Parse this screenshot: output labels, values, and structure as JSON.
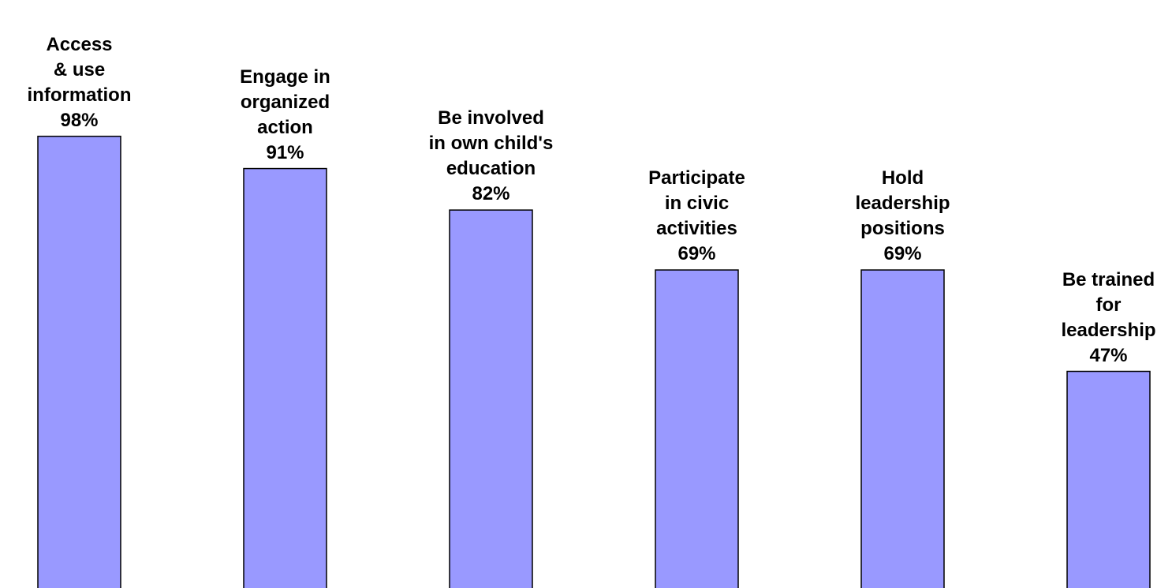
{
  "chart_data": {
    "type": "bar",
    "categories": [
      "Access\n& use\ninformation",
      "Engage in\norganized\naction",
      "Be involved\nin own child's\neducation",
      "Participate\nin civic\nactivities",
      "Hold\nleadership\npositions",
      "Be trained\nfor\nleadership"
    ],
    "values": [
      98,
      91,
      82,
      69,
      69,
      47
    ],
    "value_labels": [
      "98%",
      "91%",
      "82%",
      "69%",
      "69%",
      "47%"
    ],
    "color": "#9999ff"
  }
}
